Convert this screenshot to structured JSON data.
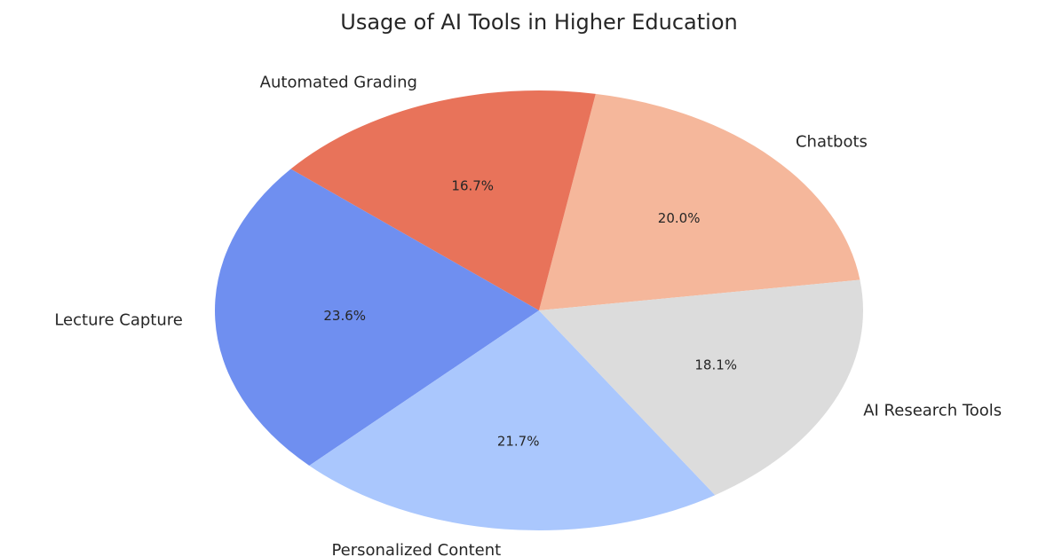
{
  "chart_data": {
    "type": "pie",
    "title": "Usage of AI Tools in Higher Education",
    "categories": [
      "Chatbots",
      "Automated Grading",
      "Lecture Capture",
      "Personalized Content",
      "AI Research Tools"
    ],
    "values": [
      20.0,
      16.7,
      23.6,
      21.7,
      18.1
    ],
    "value_labels": [
      "20.0%",
      "16.7%",
      "23.6%",
      "21.7%",
      "18.1%"
    ],
    "colors": [
      "#f5b79b",
      "#e8735a",
      "#6f8ff0",
      "#aac7fd",
      "#dcdcdc"
    ]
  }
}
